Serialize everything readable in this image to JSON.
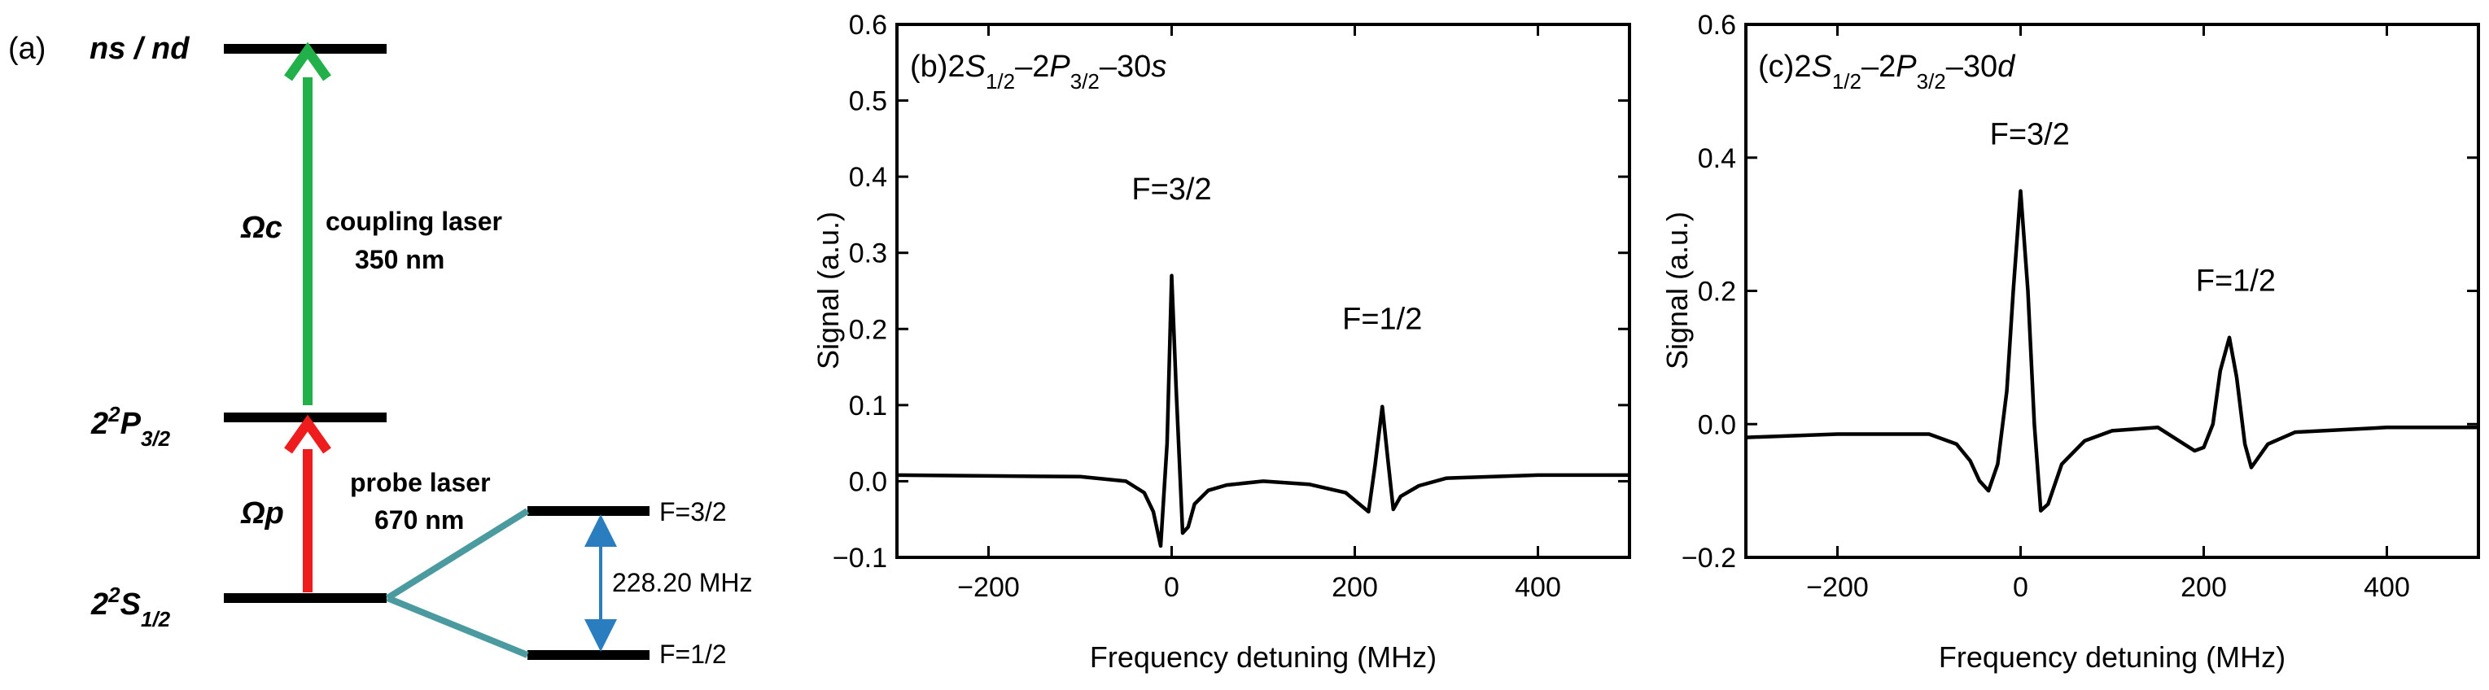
{
  "panel_a": {
    "label": "(a)",
    "levels": {
      "top": "ns / nd",
      "p": {
        "base": "2",
        "sup": "2",
        "letter": "P",
        "sub": "3/2"
      },
      "s": {
        "base": "2",
        "sup": "2",
        "letter": "S",
        "sub": "1/2"
      }
    },
    "hyperfine": {
      "upper": "F=3/2",
      "lower": "F=1/2",
      "splitting": "228.20 MHz"
    },
    "coupling": {
      "symbol": "Ωc",
      "line1": "coupling laser",
      "line2": "350 nm",
      "color": "#22b04b"
    },
    "probe": {
      "symbol": "Ωp",
      "line1": "probe laser",
      "line2": "670 nm",
      "color": "#ee1c1c"
    },
    "colors": {
      "split": "#4a9aa0",
      "arrow": "#2a7ec0"
    }
  },
  "chart_data": [
    {
      "type": "line",
      "panel": "(b)",
      "title_parts": [
        "2",
        "S",
        "1/2",
        "–2",
        "P",
        "3/2",
        "–30",
        "s"
      ],
      "xlabel": "Frequency detuning (MHz)",
      "ylabel": "Signal (a.u.)",
      "xlim": [
        -300,
        500
      ],
      "ylim": [
        -0.1,
        0.6
      ],
      "xticks": [
        -200,
        0,
        200,
        400
      ],
      "xtick_labels": [
        "−200",
        "0",
        "200",
        "400"
      ],
      "yticks": [
        -0.1,
        0.0,
        0.1,
        0.2,
        0.3,
        0.4,
        0.5,
        0.6
      ],
      "ytick_labels": [
        "−0.1",
        "0.0",
        "0.1",
        "0.2",
        "0.3",
        "0.4",
        "0.5",
        "0.6"
      ],
      "annotations": [
        {
          "text": "F=3/2",
          "x": 0,
          "y": 0.37
        },
        {
          "text": "F=1/2",
          "x": 230,
          "y": 0.2
        }
      ],
      "grid": false,
      "x": [
        -300,
        -100,
        -50,
        -30,
        -20,
        -12,
        -5,
        0,
        5,
        12,
        18,
        25,
        40,
        60,
        100,
        150,
        190,
        205,
        215,
        222,
        230,
        236,
        242,
        250,
        270,
        300,
        400,
        500
      ],
      "y": [
        0.008,
        0.006,
        0.0,
        -0.015,
        -0.04,
        -0.085,
        0.05,
        0.27,
        0.12,
        -0.068,
        -0.06,
        -0.03,
        -0.012,
        -0.005,
        0.0,
        -0.004,
        -0.015,
        -0.03,
        -0.04,
        0.02,
        0.098,
        0.03,
        -0.037,
        -0.02,
        -0.006,
        0.004,
        0.008,
        0.008
      ],
      "color": "#000000"
    },
    {
      "type": "line",
      "panel": "(c)",
      "title_parts": [
        "2",
        "S",
        "1/2",
        "–2",
        "P",
        "3/2",
        "–30",
        "d"
      ],
      "xlabel": "Frequency detuning (MHz)",
      "ylabel": "Signal (a.u.)",
      "xlim": [
        -300,
        500
      ],
      "ylim": [
        -0.2,
        0.6
      ],
      "xticks": [
        -200,
        0,
        200,
        400
      ],
      "xtick_labels": [
        "−200",
        "0",
        "200",
        "400"
      ],
      "yticks": [
        -0.2,
        0.0,
        0.2,
        0.4,
        0.6
      ],
      "ytick_labels": [
        "−0.2",
        "0.0",
        "0.2",
        "0.4",
        "0.6"
      ],
      "annotations": [
        {
          "text": "F=3/2",
          "x": 10,
          "y": 0.42
        },
        {
          "text": "F=1/2",
          "x": 235,
          "y": 0.2
        }
      ],
      "grid": false,
      "x": [
        -300,
        -200,
        -100,
        -70,
        -55,
        -45,
        -35,
        -25,
        -15,
        -8,
        0,
        8,
        15,
        22,
        30,
        45,
        70,
        100,
        150,
        190,
        200,
        210,
        218,
        228,
        236,
        245,
        252,
        270,
        300,
        400,
        500
      ],
      "y": [
        -0.02,
        -0.015,
        -0.015,
        -0.03,
        -0.055,
        -0.085,
        -0.1,
        -0.06,
        0.05,
        0.2,
        0.35,
        0.2,
        0.0,
        -0.13,
        -0.12,
        -0.06,
        -0.025,
        -0.01,
        -0.005,
        -0.04,
        -0.035,
        0.0,
        0.08,
        0.13,
        0.07,
        -0.03,
        -0.065,
        -0.03,
        -0.012,
        -0.005,
        -0.005
      ],
      "color": "#000000"
    }
  ]
}
